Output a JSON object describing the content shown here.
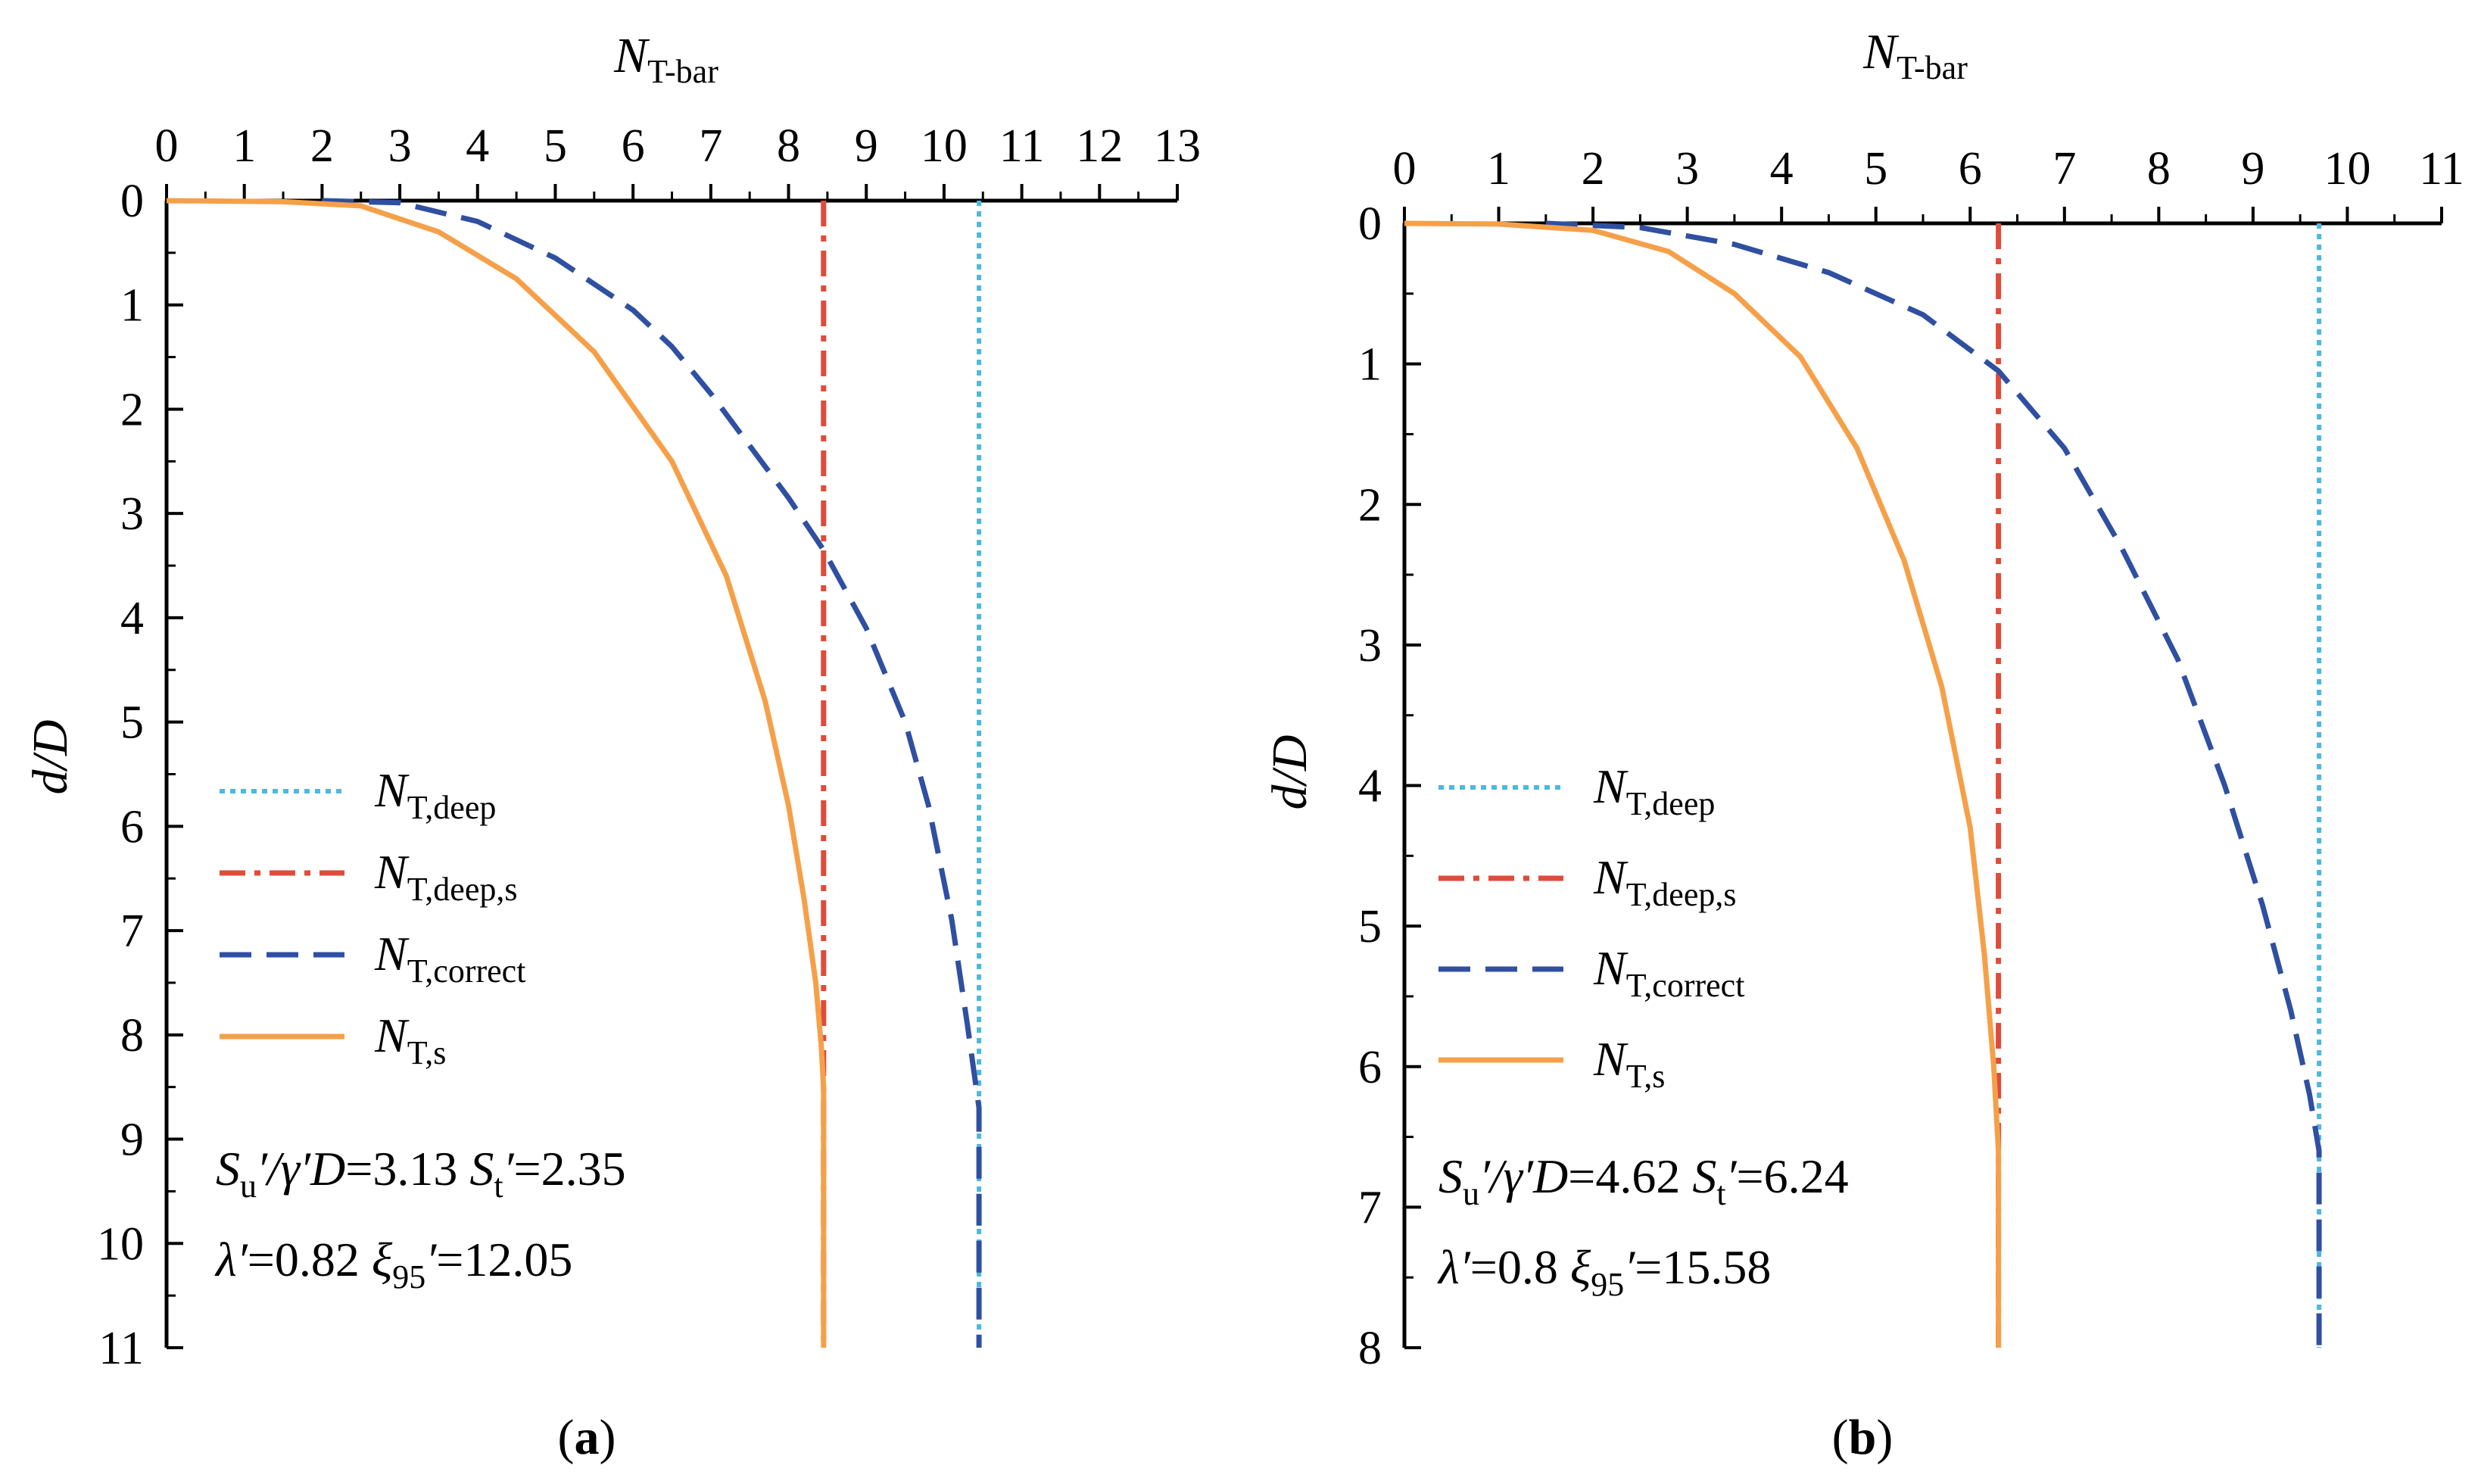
{
  "chart_data": [
    {
      "panel": "a",
      "type": "line",
      "panel_label": "(a)",
      "xlabel": {
        "main": "N",
        "sub": "T-bar"
      },
      "ylabel": "d/D",
      "xlim": [
        0,
        13
      ],
      "ylim": [
        0,
        11
      ],
      "x_ticks": [
        "0",
        "1",
        "2",
        "3",
        "4",
        "5",
        "6",
        "7",
        "8",
        "9",
        "10",
        "11",
        "12",
        "13"
      ],
      "y_ticks": [
        "0",
        "1",
        "2",
        "3",
        "4",
        "5",
        "6",
        "7",
        "8",
        "9",
        "10",
        "11"
      ],
      "y_inverted": true,
      "x_axis_position": "top",
      "legend_position": "bottom-left",
      "params": {
        "line1": [
          {
            "t": "S",
            "it": true
          },
          {
            "t": "u",
            "sub": true
          },
          {
            "t": "′/",
            "it": true
          },
          {
            "t": "γ′D",
            "it": true
          },
          {
            "t": "=3.13 "
          },
          {
            "t": "S",
            "it": true
          },
          {
            "t": "t",
            "sub": true
          },
          {
            "t": "′",
            "it": true
          },
          {
            "t": "=2.35"
          }
        ],
        "line2": [
          {
            "t": "λ′",
            "it": true
          },
          {
            "t": "=0.82  "
          },
          {
            "t": "ξ",
            "it": true
          },
          {
            "t": "95",
            "sub": true
          },
          {
            "t": "′",
            "it": true
          },
          {
            "t": "=12.05"
          }
        ]
      },
      "series": [
        {
          "name": "N",
          "sub": "T,deep",
          "style": "dot",
          "color": "#4db8e0",
          "points": [
            [
              10.45,
              0
            ],
            [
              10.45,
              11
            ]
          ]
        },
        {
          "name": "N",
          "sub": "T,deep,s",
          "style": "dashdot",
          "color": "#e04b3a",
          "points": [
            [
              8.45,
              0
            ],
            [
              8.45,
              11
            ]
          ]
        },
        {
          "name": "N",
          "sub": "T,correct",
          "style": "dash",
          "color": "#2f4fa1",
          "points": [
            [
              2.0,
              0
            ],
            [
              3.0,
              0.02
            ],
            [
              4.0,
              0.2
            ],
            [
              5.0,
              0.55
            ],
            [
              6.0,
              1.05
            ],
            [
              6.5,
              1.4
            ],
            [
              7.0,
              1.85
            ],
            [
              7.5,
              2.35
            ],
            [
              8.0,
              2.85
            ],
            [
              8.45,
              3.35
            ],
            [
              9.0,
              4.1
            ],
            [
              9.5,
              5.0
            ],
            [
              9.8,
              5.8
            ],
            [
              10.1,
              6.9
            ],
            [
              10.3,
              7.9
            ],
            [
              10.45,
              8.7
            ],
            [
              10.45,
              11
            ]
          ]
        },
        {
          "name": "N",
          "sub": "T,s",
          "style": "solid",
          "color": "#f5a049",
          "points": [
            [
              0,
              0
            ],
            [
              1.5,
              0.01
            ],
            [
              2.5,
              0.05
            ],
            [
              3.5,
              0.3
            ],
            [
              4.5,
              0.75
            ],
            [
              5.5,
              1.45
            ],
            [
              6.5,
              2.5
            ],
            [
              7.2,
              3.6
            ],
            [
              7.7,
              4.8
            ],
            [
              8.0,
              5.8
            ],
            [
              8.2,
              6.7
            ],
            [
              8.35,
              7.5
            ],
            [
              8.42,
              8.1
            ],
            [
              8.45,
              8.5
            ],
            [
              8.45,
              11
            ]
          ]
        }
      ]
    },
    {
      "panel": "b",
      "type": "line",
      "panel_label": "(b)",
      "xlabel": {
        "main": "N",
        "sub": "T-bar"
      },
      "ylabel": "d/D",
      "xlim": [
        0,
        11
      ],
      "ylim": [
        0,
        8
      ],
      "x_ticks": [
        "0",
        "1",
        "2",
        "3",
        "4",
        "5",
        "6",
        "7",
        "8",
        "9",
        "10",
        "11"
      ],
      "y_ticks": [
        "0",
        "1",
        "2",
        "3",
        "4",
        "5",
        "6",
        "7",
        "8"
      ],
      "y_inverted": true,
      "x_axis_position": "top",
      "legend_position": "bottom-left",
      "params": {
        "line1": [
          {
            "t": "S",
            "it": true
          },
          {
            "t": "u",
            "sub": true
          },
          {
            "t": "′/",
            "it": true
          },
          {
            "t": "γ′D",
            "it": true
          },
          {
            "t": "=4.62 "
          },
          {
            "t": "S",
            "it": true
          },
          {
            "t": "t",
            "sub": true
          },
          {
            "t": "′",
            "it": true
          },
          {
            "t": "=6.24"
          }
        ],
        "line2": [
          {
            "t": "λ′",
            "it": true
          },
          {
            "t": "=0.8  "
          },
          {
            "t": "ξ",
            "it": true
          },
          {
            "t": "95",
            "sub": true
          },
          {
            "t": "′",
            "it": true
          },
          {
            "t": "=15.58"
          }
        ]
      },
      "series": [
        {
          "name": "N",
          "sub": "T,deep",
          "style": "dot",
          "color": "#4db8e0",
          "points": [
            [
              9.7,
              0
            ],
            [
              9.7,
              8
            ]
          ]
        },
        {
          "name": "N",
          "sub": "T,deep,s",
          "style": "dashdot",
          "color": "#e04b3a",
          "points": [
            [
              6.3,
              0
            ],
            [
              6.3,
              8
            ]
          ]
        },
        {
          "name": "N",
          "sub": "T,correct",
          "style": "dash",
          "color": "#2f4fa1",
          "points": [
            [
              1.5,
              0
            ],
            [
              2.5,
              0.03
            ],
            [
              3.5,
              0.15
            ],
            [
              4.5,
              0.35
            ],
            [
              5.5,
              0.65
            ],
            [
              6.3,
              1.05
            ],
            [
              7.0,
              1.6
            ],
            [
              7.6,
              2.3
            ],
            [
              8.2,
              3.1
            ],
            [
              8.7,
              4.0
            ],
            [
              9.1,
              4.85
            ],
            [
              9.4,
              5.6
            ],
            [
              9.6,
              6.2
            ],
            [
              9.7,
              6.6
            ],
            [
              9.7,
              8
            ]
          ]
        },
        {
          "name": "N",
          "sub": "T,s",
          "style": "solid",
          "color": "#f5a049",
          "points": [
            [
              0,
              0
            ],
            [
              1.0,
              0.005
            ],
            [
              2.0,
              0.05
            ],
            [
              2.8,
              0.2
            ],
            [
              3.5,
              0.5
            ],
            [
              4.2,
              0.95
            ],
            [
              4.8,
              1.6
            ],
            [
              5.3,
              2.4
            ],
            [
              5.7,
              3.3
            ],
            [
              6.0,
              4.3
            ],
            [
              6.15,
              5.2
            ],
            [
              6.25,
              6.0
            ],
            [
              6.3,
              6.6
            ],
            [
              6.3,
              8
            ]
          ]
        }
      ]
    }
  ]
}
